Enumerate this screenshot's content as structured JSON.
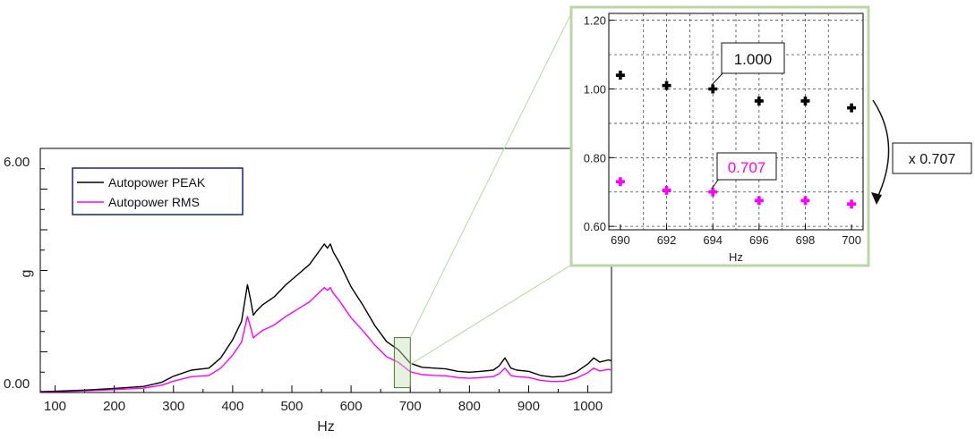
{
  "chart_data": [
    {
      "type": "line",
      "xlabel": "Hz",
      "ylabel": "g",
      "xlim": [
        75,
        1040
      ],
      "ylim": [
        0,
        6
      ],
      "x_ticks": [
        100,
        200,
        300,
        400,
        500,
        600,
        700,
        800,
        900,
        1000
      ],
      "x_tick_labels": [
        "100",
        "200",
        "300",
        "400",
        "500",
        "600",
        "700",
        "800",
        "900",
        "1000"
      ],
      "y_tick_labels": [
        {
          "value": 0,
          "label": "0.00"
        },
        {
          "value": 6,
          "label": "6.00"
        }
      ],
      "legend": {
        "placement": "top-left",
        "entries": [
          "Autopower PEAK",
          "Autopower RMS"
        ]
      },
      "colors": {
        "peak": "#000000",
        "rms": "#ff00ff",
        "legend_border": "#1a237e",
        "highlight": "#4a7a2a"
      },
      "highlight_range": {
        "x": [
          673,
          700
        ],
        "y": [
          0.12,
          1.35
        ]
      },
      "series": [
        {
          "name": "Autopower PEAK",
          "x": [
            75,
            100,
            150,
            200,
            250,
            280,
            300,
            330,
            360,
            380,
            400,
            415,
            425,
            430,
            435,
            440,
            450,
            470,
            490,
            510,
            530,
            545,
            555,
            560,
            565,
            570,
            580,
            600,
            620,
            640,
            660,
            680,
            700,
            720,
            740,
            760,
            780,
            800,
            820,
            840,
            850,
            860,
            870,
            880,
            900,
            920,
            940,
            960,
            980,
            1000,
            1010,
            1020,
            1035,
            1040
          ],
          "y": [
            0.02,
            0.03,
            0.06,
            0.1,
            0.15,
            0.25,
            0.4,
            0.55,
            0.6,
            0.85,
            1.3,
            1.75,
            2.65,
            2.3,
            1.9,
            2.0,
            2.15,
            2.35,
            2.65,
            2.9,
            3.15,
            3.45,
            3.65,
            3.55,
            3.65,
            3.45,
            3.2,
            2.6,
            2.15,
            1.65,
            1.25,
            1.05,
            0.72,
            0.62,
            0.6,
            0.58,
            0.52,
            0.5,
            0.52,
            0.55,
            0.65,
            0.85,
            0.6,
            0.55,
            0.52,
            0.42,
            0.38,
            0.4,
            0.5,
            0.7,
            0.85,
            0.75,
            0.8,
            0.78
          ]
        },
        {
          "name": "Autopower RMS",
          "x": [
            75,
            100,
            150,
            200,
            250,
            280,
            300,
            330,
            360,
            380,
            400,
            415,
            425,
            430,
            435,
            440,
            450,
            470,
            490,
            510,
            530,
            545,
            555,
            560,
            565,
            570,
            580,
            600,
            620,
            640,
            660,
            680,
            700,
            720,
            740,
            760,
            780,
            800,
            820,
            840,
            850,
            860,
            870,
            880,
            900,
            920,
            940,
            960,
            980,
            1000,
            1010,
            1020,
            1035,
            1040
          ],
          "y": [
            0.01,
            0.02,
            0.04,
            0.07,
            0.11,
            0.18,
            0.28,
            0.39,
            0.42,
            0.6,
            0.92,
            1.24,
            1.87,
            1.62,
            1.34,
            1.41,
            1.52,
            1.66,
            1.87,
            2.05,
            2.23,
            2.44,
            2.58,
            2.51,
            2.58,
            2.44,
            2.26,
            1.84,
            1.52,
            1.17,
            0.88,
            0.74,
            0.51,
            0.44,
            0.42,
            0.41,
            0.37,
            0.35,
            0.37,
            0.39,
            0.46,
            0.6,
            0.42,
            0.39,
            0.37,
            0.3,
            0.27,
            0.28,
            0.35,
            0.49,
            0.6,
            0.53,
            0.57,
            0.55
          ]
        }
      ]
    },
    {
      "type": "scatter",
      "xlabel": "Hz",
      "ylabel": "",
      "xlim": [
        689.5,
        700.5
      ],
      "ylim": [
        0.59,
        1.22
      ],
      "x_ticks": [
        690,
        692,
        694,
        696,
        698,
        700
      ],
      "x_tick_labels": [
        "690",
        "692",
        "694",
        "696",
        "698",
        "700"
      ],
      "y_ticks": [
        0.6,
        0.8,
        1.0,
        1.2
      ],
      "y_tick_labels": [
        "0.60",
        "0.80",
        "1.00",
        "1.20"
      ],
      "grid": true,
      "series": [
        {
          "name": "Autopower PEAK",
          "x": [
            690,
            692,
            694,
            696,
            698,
            700
          ],
          "y": [
            1.04,
            1.01,
            1.0,
            0.965,
            0.965,
            0.945
          ]
        },
        {
          "name": "Autopower RMS",
          "x": [
            690,
            692,
            694,
            696,
            698,
            700
          ],
          "y": [
            0.73,
            0.705,
            0.7,
            0.675,
            0.675,
            0.665
          ]
        }
      ],
      "annotations": [
        {
          "text": "1.000",
          "x": 694,
          "y": 1.0,
          "color": "#111111"
        },
        {
          "text": "0.707",
          "x": 694,
          "y": 0.7,
          "color": "#ff00ff"
        }
      ],
      "factor_label": "x 0.707",
      "frame_color": "#b9d7a4"
    }
  ]
}
